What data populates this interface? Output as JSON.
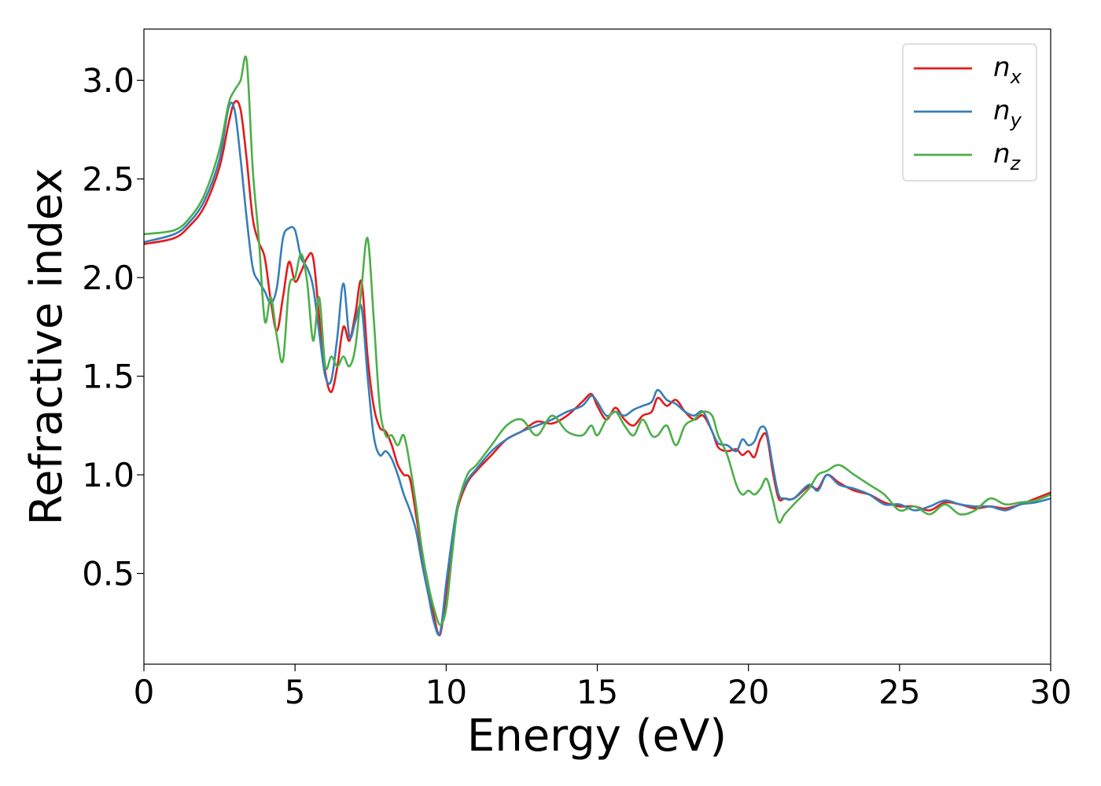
{
  "chart_data": {
    "type": "line",
    "xlabel": "Energy (eV)",
    "ylabel": "Refractive index",
    "xlim": [
      0,
      30
    ],
    "ylim": [
      0.04,
      3.26
    ],
    "xticks": [
      0,
      5,
      10,
      15,
      20,
      25,
      30
    ],
    "xtick_labels": [
      "0",
      "5",
      "10",
      "15",
      "20",
      "25",
      "30"
    ],
    "yticks": [
      0.5,
      1.0,
      1.5,
      2.0,
      2.5,
      3.0
    ],
    "ytick_labels": [
      "0.5",
      "1.0",
      "1.5",
      "2.0",
      "2.5",
      "3.0"
    ],
    "grid": false,
    "legend_position": "top-right",
    "series": [
      {
        "name": "n_x",
        "legend_base": "n",
        "legend_sub": "x",
        "color": "#e41a1c",
        "x": [
          0,
          1,
          1.5,
          2,
          2.5,
          2.8,
          3.0,
          3.2,
          3.4,
          3.6,
          3.8,
          4.0,
          4.2,
          4.4,
          4.6,
          4.8,
          5.0,
          5.2,
          5.4,
          5.6,
          5.8,
          6.0,
          6.2,
          6.4,
          6.6,
          6.8,
          7.0,
          7.2,
          7.4,
          7.6,
          7.8,
          8.0,
          8.2,
          8.4,
          8.6,
          8.8,
          9.0,
          9.2,
          9.4,
          9.6,
          9.8,
          10.0,
          10.2,
          10.4,
          10.7,
          11.0,
          11.5,
          12.0,
          12.5,
          13.0,
          13.5,
          14.0,
          14.5,
          14.8,
          15.0,
          15.3,
          15.6,
          15.9,
          16.2,
          16.5,
          16.8,
          17.0,
          17.3,
          17.6,
          17.9,
          18.2,
          18.5,
          18.8,
          19.0,
          19.3,
          19.6,
          19.8,
          20.0,
          20.2,
          20.4,
          20.6,
          20.8,
          21.0,
          21.2,
          21.5,
          22.0,
          22.3,
          22.6,
          23.0,
          23.5,
          24.0,
          24.5,
          25.0,
          25.5,
          26.0,
          26.5,
          27.0,
          27.5,
          28.0,
          28.5,
          29.0,
          29.5,
          30.0
        ],
        "y": [
          2.17,
          2.2,
          2.26,
          2.36,
          2.56,
          2.78,
          2.89,
          2.85,
          2.6,
          2.3,
          2.18,
          2.1,
          1.88,
          1.73,
          1.9,
          2.08,
          1.98,
          2.03,
          2.1,
          2.1,
          1.8,
          1.52,
          1.42,
          1.55,
          1.75,
          1.68,
          1.82,
          1.98,
          1.6,
          1.35,
          1.24,
          1.22,
          1.15,
          1.05,
          1.0,
          0.98,
          0.8,
          0.6,
          0.45,
          0.28,
          0.19,
          0.4,
          0.66,
          0.84,
          0.96,
          1.02,
          1.1,
          1.18,
          1.22,
          1.27,
          1.26,
          1.3,
          1.37,
          1.41,
          1.35,
          1.28,
          1.34,
          1.28,
          1.25,
          1.3,
          1.32,
          1.39,
          1.35,
          1.38,
          1.32,
          1.28,
          1.3,
          1.22,
          1.14,
          1.12,
          1.13,
          1.1,
          1.12,
          1.09,
          1.18,
          1.2,
          1.02,
          0.88,
          0.88,
          0.88,
          0.94,
          0.93,
          1.0,
          0.96,
          0.92,
          0.9,
          0.86,
          0.84,
          0.84,
          0.82,
          0.86,
          0.85,
          0.83,
          0.84,
          0.83,
          0.85,
          0.88,
          0.91
        ]
      },
      {
        "name": "n_y",
        "legend_base": "n",
        "legend_sub": "y",
        "color": "#377eb8",
        "x": [
          0,
          1,
          1.5,
          2,
          2.5,
          2.8,
          3.0,
          3.2,
          3.4,
          3.6,
          3.8,
          4.0,
          4.2,
          4.4,
          4.6,
          4.8,
          5.0,
          5.2,
          5.4,
          5.6,
          5.8,
          6.0,
          6.2,
          6.4,
          6.6,
          6.8,
          7.0,
          7.2,
          7.4,
          7.6,
          7.8,
          8.0,
          8.2,
          8.4,
          8.6,
          8.8,
          9.0,
          9.2,
          9.4,
          9.6,
          9.8,
          10.0,
          10.2,
          10.4,
          10.7,
          11.0,
          11.5,
          12.0,
          12.5,
          13.0,
          13.5,
          14.0,
          14.5,
          14.8,
          15.0,
          15.3,
          15.6,
          15.9,
          16.2,
          16.5,
          16.8,
          17.0,
          17.3,
          17.6,
          17.9,
          18.2,
          18.5,
          18.8,
          19.0,
          19.3,
          19.6,
          19.8,
          20.0,
          20.2,
          20.4,
          20.6,
          20.8,
          21.0,
          21.2,
          21.5,
          22.0,
          22.3,
          22.6,
          23.0,
          23.5,
          24.0,
          24.5,
          25.0,
          25.5,
          26.0,
          26.5,
          27.0,
          27.5,
          28.0,
          28.5,
          29.0,
          29.5,
          30.0
        ],
        "y": [
          2.18,
          2.22,
          2.28,
          2.39,
          2.6,
          2.86,
          2.85,
          2.6,
          2.3,
          2.05,
          1.98,
          1.93,
          1.87,
          1.95,
          2.2,
          2.25,
          2.24,
          2.1,
          2.05,
          1.95,
          1.72,
          1.5,
          1.48,
          1.7,
          1.97,
          1.7,
          1.78,
          1.85,
          1.5,
          1.2,
          1.1,
          1.12,
          1.08,
          1.0,
          0.9,
          0.82,
          0.72,
          0.55,
          0.4,
          0.25,
          0.2,
          0.45,
          0.68,
          0.86,
          0.97,
          1.03,
          1.12,
          1.18,
          1.22,
          1.25,
          1.28,
          1.32,
          1.35,
          1.4,
          1.37,
          1.3,
          1.32,
          1.3,
          1.33,
          1.35,
          1.37,
          1.43,
          1.38,
          1.36,
          1.32,
          1.3,
          1.32,
          1.22,
          1.16,
          1.15,
          1.12,
          1.18,
          1.15,
          1.17,
          1.24,
          1.22,
          1.05,
          0.9,
          0.88,
          0.88,
          0.95,
          0.92,
          1.0,
          0.95,
          0.93,
          0.9,
          0.85,
          0.85,
          0.82,
          0.84,
          0.87,
          0.85,
          0.84,
          0.84,
          0.82,
          0.85,
          0.86,
          0.88
        ]
      },
      {
        "name": "n_z",
        "legend_base": "n",
        "legend_sub": "z",
        "color": "#4daf4a",
        "x": [
          0,
          1,
          1.5,
          2,
          2.5,
          2.8,
          3.0,
          3.2,
          3.4,
          3.6,
          3.8,
          4.0,
          4.2,
          4.4,
          4.6,
          4.8,
          5.0,
          5.2,
          5.4,
          5.6,
          5.8,
          6.0,
          6.2,
          6.4,
          6.6,
          6.8,
          7.0,
          7.2,
          7.4,
          7.6,
          7.8,
          8.0,
          8.2,
          8.4,
          8.6,
          8.8,
          9.0,
          9.2,
          9.4,
          9.6,
          9.8,
          10.0,
          10.2,
          10.4,
          10.7,
          11.0,
          11.5,
          12.0,
          12.5,
          13.0,
          13.5,
          14.0,
          14.5,
          14.8,
          15.0,
          15.3,
          15.6,
          15.9,
          16.2,
          16.5,
          16.8,
          17.0,
          17.3,
          17.6,
          17.9,
          18.2,
          18.5,
          18.8,
          19.0,
          19.3,
          19.6,
          19.8,
          20.0,
          20.2,
          20.4,
          20.6,
          20.8,
          21.0,
          21.2,
          21.5,
          22.0,
          22.3,
          22.6,
          23.0,
          23.5,
          24.0,
          24.5,
          25.0,
          25.5,
          26.0,
          26.5,
          27.0,
          27.5,
          28.0,
          28.5,
          29.0,
          29.5,
          30.0
        ],
        "y": [
          2.22,
          2.24,
          2.3,
          2.42,
          2.65,
          2.88,
          2.95,
          3.0,
          3.1,
          2.55,
          2.2,
          1.78,
          1.9,
          1.7,
          1.58,
          1.95,
          2.0,
          2.12,
          1.98,
          1.68,
          1.9,
          1.55,
          1.6,
          1.55,
          1.6,
          1.55,
          1.65,
          1.95,
          2.2,
          1.8,
          1.35,
          1.2,
          1.2,
          1.15,
          1.2,
          1.05,
          0.85,
          0.62,
          0.45,
          0.32,
          0.24,
          0.32,
          0.6,
          0.85,
          1.0,
          1.05,
          1.15,
          1.25,
          1.28,
          1.2,
          1.3,
          1.22,
          1.2,
          1.25,
          1.2,
          1.28,
          1.32,
          1.25,
          1.2,
          1.28,
          1.2,
          1.2,
          1.25,
          1.15,
          1.25,
          1.28,
          1.32,
          1.3,
          1.2,
          1.1,
          0.95,
          0.9,
          0.92,
          0.9,
          0.93,
          0.98,
          0.88,
          0.76,
          0.8,
          0.85,
          0.93,
          1.0,
          1.02,
          1.05,
          1.0,
          0.95,
          0.9,
          0.82,
          0.84,
          0.8,
          0.85,
          0.8,
          0.82,
          0.88,
          0.85,
          0.86,
          0.87,
          0.9
        ]
      }
    ]
  }
}
